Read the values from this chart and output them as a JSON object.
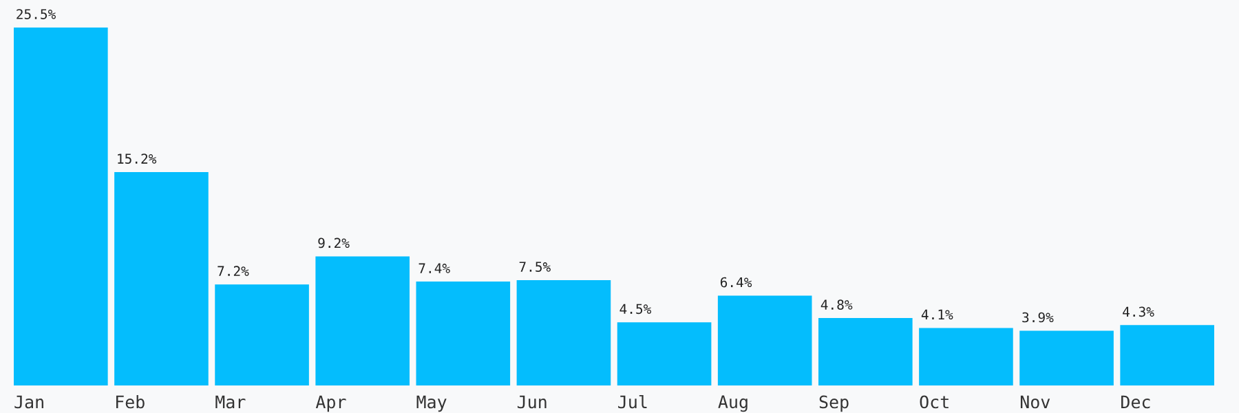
{
  "chart_data": {
    "type": "bar",
    "categories": [
      "Jan",
      "Feb",
      "Mar",
      "Apr",
      "May",
      "Jun",
      "Jul",
      "Aug",
      "Sep",
      "Oct",
      "Nov",
      "Dec"
    ],
    "values": [
      25.5,
      15.2,
      7.2,
      9.2,
      7.4,
      7.5,
      4.5,
      6.4,
      4.8,
      4.1,
      3.9,
      4.3
    ],
    "value_labels": [
      "25.5%",
      "15.2%",
      "7.2%",
      "9.2%",
      "7.4%",
      "7.5%",
      "4.5%",
      "6.4%",
      "4.8%",
      "4.1%",
      "3.9%",
      "4.3%"
    ],
    "color": "#04bdfd",
    "grid": false,
    "legend": false
  }
}
